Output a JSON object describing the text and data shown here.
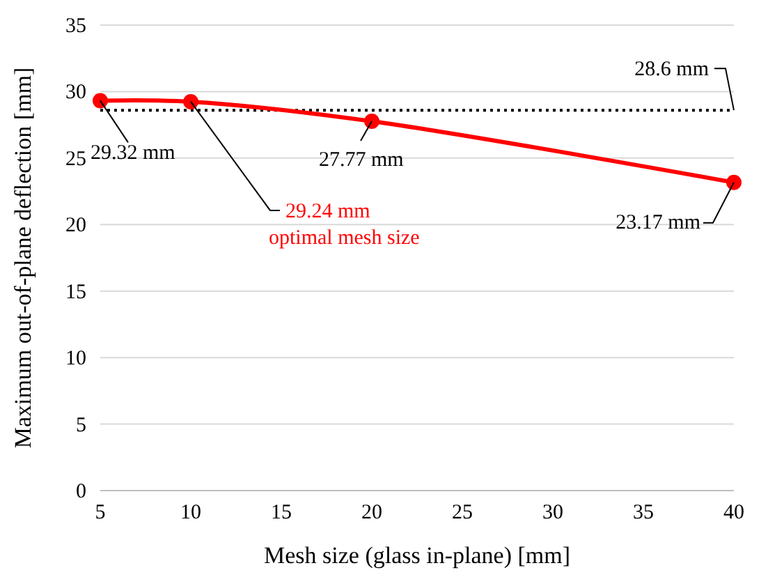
{
  "chart_data": {
    "type": "line",
    "xlabel": "Mesh size (glass in-plane) [mm]",
    "ylabel": "Maximum out-of-plane deflection [mm]",
    "x": [
      5,
      10,
      20,
      40
    ],
    "series": [
      {
        "color": "#ff0000",
        "values": [
          29.32,
          29.24,
          27.77,
          23.17
        ]
      }
    ],
    "xlim": [
      5,
      40
    ],
    "xticks": [
      5,
      10,
      15,
      20,
      25,
      30,
      35,
      40
    ],
    "ylim": [
      0,
      35
    ],
    "yticks": [
      0,
      5,
      10,
      15,
      20,
      25,
      30,
      35
    ],
    "grid": "y",
    "marker": "circle",
    "line_style": "solid",
    "ref_lines": [
      {
        "axis": "y",
        "value": 28.6,
        "label": "28.6 mm",
        "color": "#000000",
        "line_style": "dotted"
      }
    ],
    "annotations": [
      {
        "text": "29.32 mm",
        "x": 5,
        "y": 29.32
      },
      {
        "text": "29.24 mm\noptimal mesh size",
        "x": 10,
        "y": 29.24
      },
      {
        "text": "27.77 mm",
        "x": 20,
        "y": 27.77
      },
      {
        "text": "23.17 mm",
        "x": 40,
        "y": 23.17
      }
    ]
  }
}
